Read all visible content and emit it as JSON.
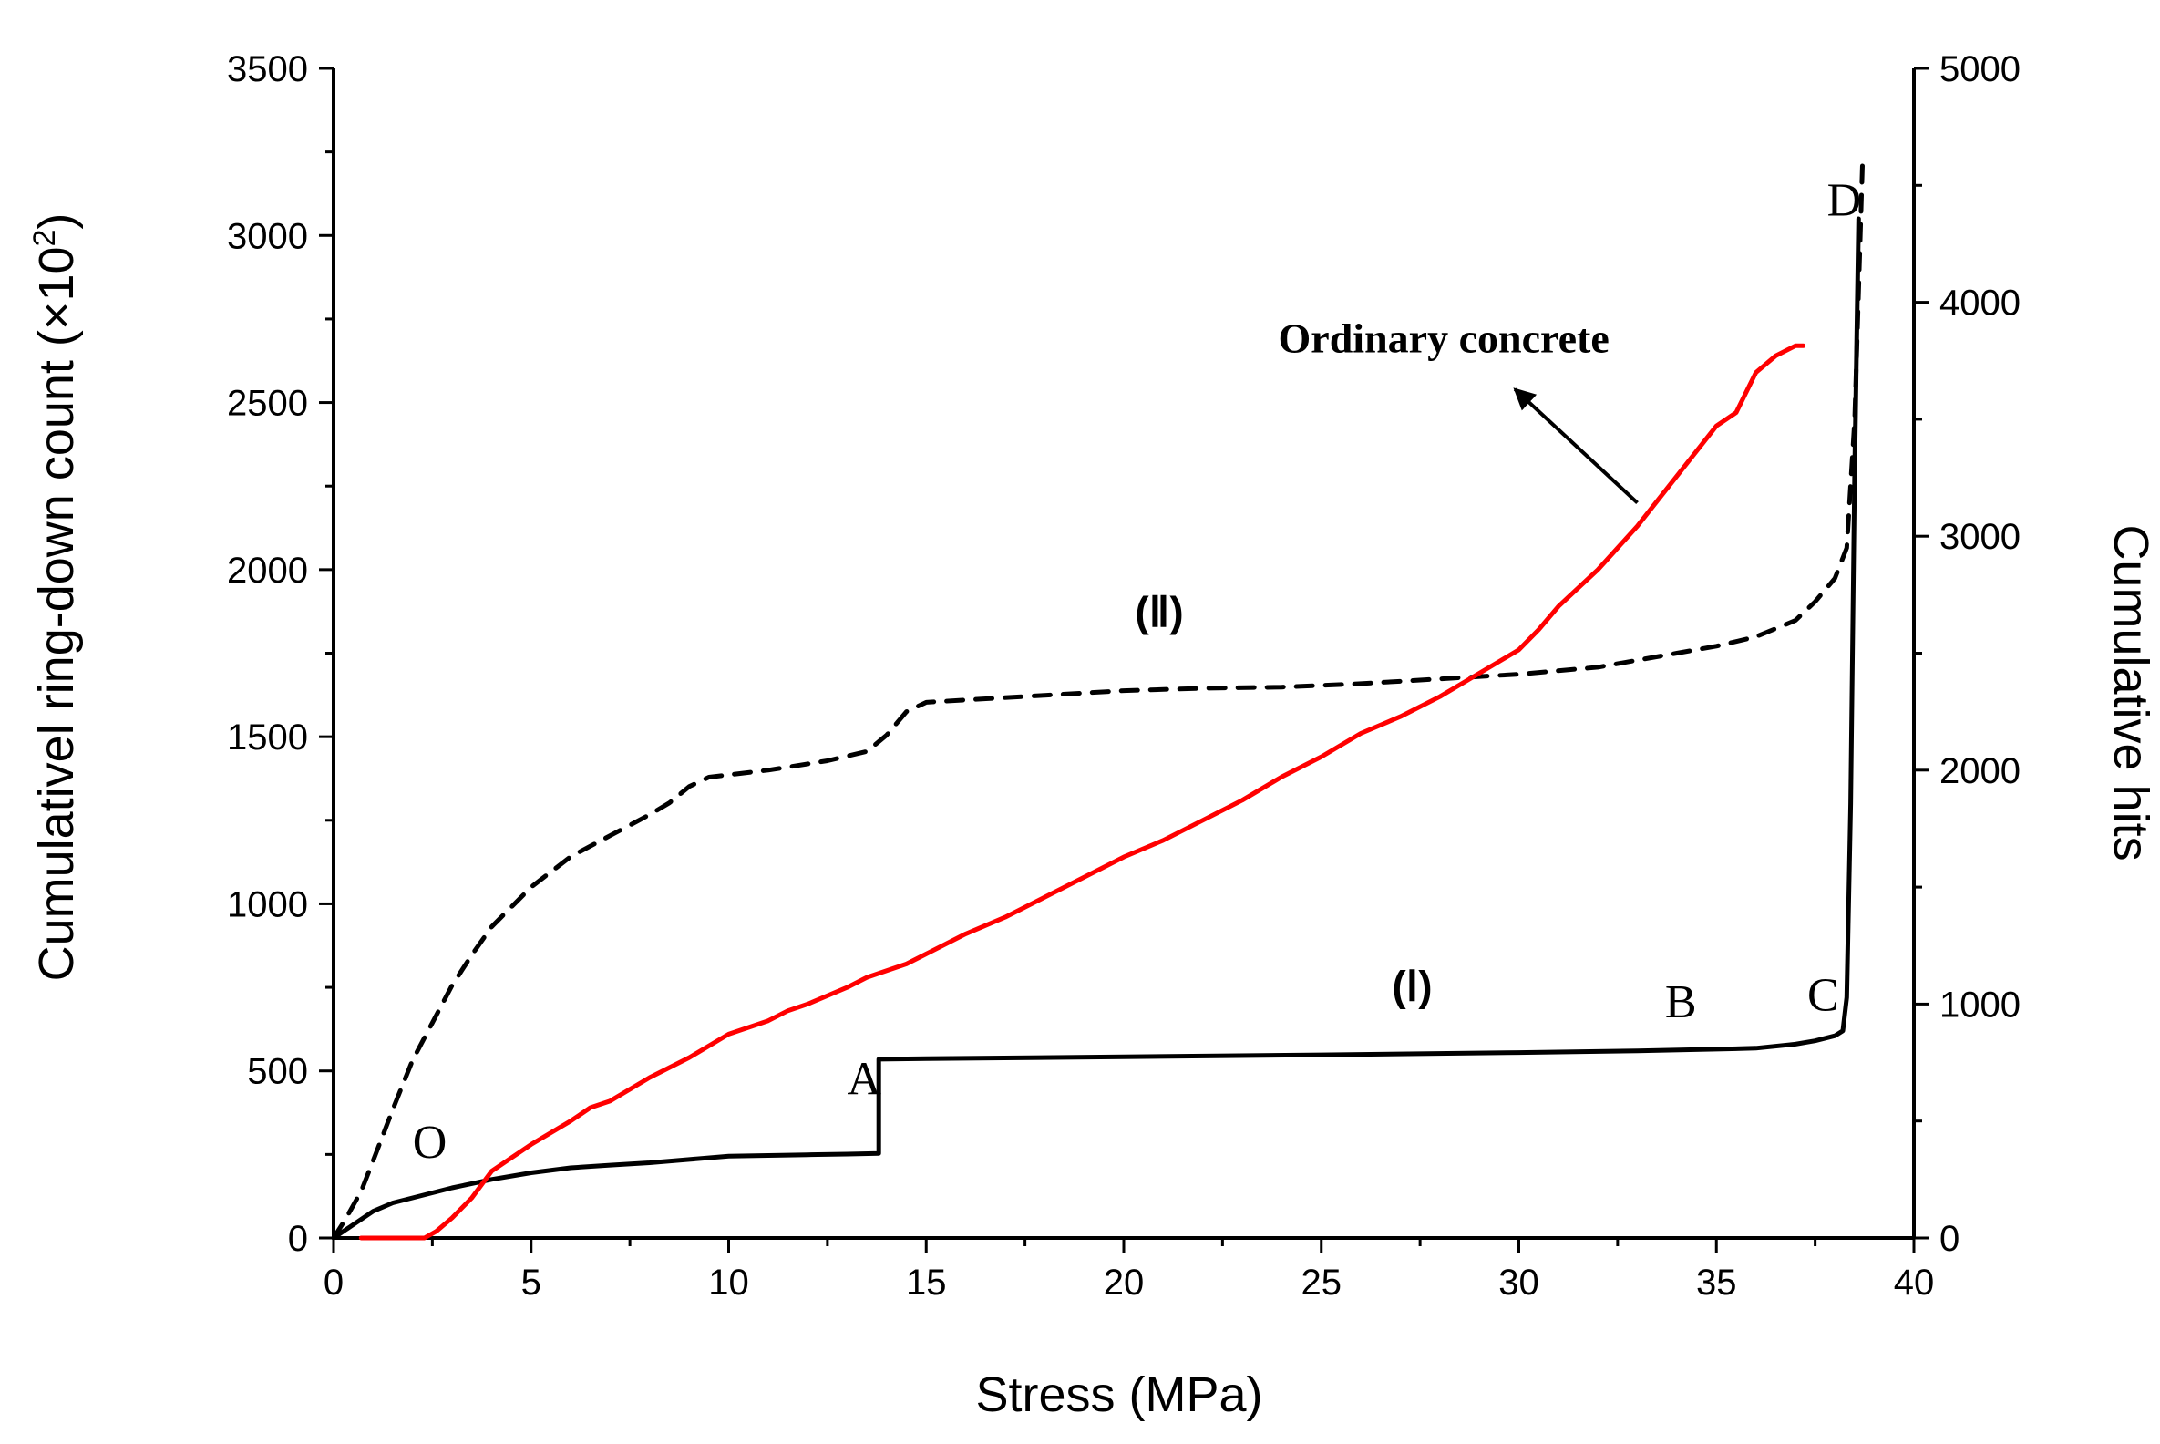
{
  "chart_data": {
    "type": "line",
    "title": "",
    "xlabel": "Stress (MPa)",
    "ylabel_left": "Cumulativel ring-down count (×10",
    "ylabel_left_exponent": "2",
    "ylabel_left_close": ")",
    "ylabel_right": "Cumulative hits",
    "xlim": [
      0,
      40
    ],
    "ylim_left": [
      0,
      3500
    ],
    "ylim_right": [
      0,
      5000
    ],
    "x_ticks": [
      "0",
      "5",
      "10",
      "15",
      "20",
      "25",
      "30",
      "35",
      "40"
    ],
    "y_left_ticks": [
      "0",
      "500",
      "1000",
      "1500",
      "2000",
      "2500",
      "3000",
      "3500"
    ],
    "y_right_ticks": [
      "0",
      "1000",
      "2000",
      "3000",
      "4000",
      "5000"
    ],
    "colors": {
      "curve_I": "#000000",
      "curve_II": "#000000",
      "ordinary": "#ff0000",
      "axes": "#000000"
    },
    "series": [
      {
        "name": "(I) cumulative ring-down count",
        "axis": "left",
        "style": "solid",
        "points": [
          [
            0,
            0
          ],
          [
            0.5,
            40
          ],
          [
            1,
            80
          ],
          [
            1.5,
            105
          ],
          [
            2,
            120
          ],
          [
            3,
            150
          ],
          [
            4,
            175
          ],
          [
            5,
            195
          ],
          [
            6,
            210
          ],
          [
            7,
            218
          ],
          [
            8,
            225
          ],
          [
            9,
            235
          ],
          [
            10,
            245
          ],
          [
            11,
            247
          ],
          [
            12,
            249
          ],
          [
            13,
            251
          ],
          [
            13.8,
            253
          ],
          [
            13.8,
            535
          ],
          [
            15,
            537
          ],
          [
            20,
            542
          ],
          [
            25,
            548
          ],
          [
            30,
            555
          ],
          [
            33,
            560
          ],
          [
            35,
            565
          ],
          [
            36,
            568
          ],
          [
            37,
            580
          ],
          [
            37.5,
            590
          ],
          [
            38,
            605
          ],
          [
            38.2,
            620
          ],
          [
            38.3,
            720
          ],
          [
            38.4,
            1300
          ],
          [
            38.5,
            2300
          ],
          [
            38.6,
            3050
          ]
        ]
      },
      {
        "name": "(II) cumulative hits",
        "axis": "right",
        "style": "dashed",
        "points": [
          [
            0,
            0
          ],
          [
            0.3,
            80
          ],
          [
            0.7,
            200
          ],
          [
            1,
            330
          ],
          [
            1.5,
            550
          ],
          [
            2,
            760
          ],
          [
            2.5,
            920
          ],
          [
            3,
            1080
          ],
          [
            3.5,
            1210
          ],
          [
            4,
            1330
          ],
          [
            5,
            1500
          ],
          [
            6,
            1630
          ],
          [
            7,
            1720
          ],
          [
            8,
            1810
          ],
          [
            8.5,
            1860
          ],
          [
            9,
            1930
          ],
          [
            9.5,
            1970
          ],
          [
            11,
            2000
          ],
          [
            12.5,
            2040
          ],
          [
            13.5,
            2080
          ],
          [
            14,
            2150
          ],
          [
            14.5,
            2250
          ],
          [
            15,
            2290
          ],
          [
            16,
            2300
          ],
          [
            18,
            2320
          ],
          [
            20,
            2340
          ],
          [
            22,
            2350
          ],
          [
            24,
            2355
          ],
          [
            26,
            2370
          ],
          [
            28,
            2390
          ],
          [
            30,
            2410
          ],
          [
            32,
            2440
          ],
          [
            33,
            2470
          ],
          [
            34,
            2500
          ],
          [
            35,
            2530
          ],
          [
            36,
            2570
          ],
          [
            37,
            2640
          ],
          [
            37.5,
            2720
          ],
          [
            38,
            2820
          ],
          [
            38.3,
            2950
          ],
          [
            38.5,
            3500
          ],
          [
            38.7,
            4600
          ]
        ]
      },
      {
        "name": "Ordinary concrete",
        "axis": "left",
        "style": "solid-red",
        "points": [
          [
            0.7,
            0
          ],
          [
            2.3,
            0
          ],
          [
            2.6,
            20
          ],
          [
            3,
            60
          ],
          [
            3.5,
            120
          ],
          [
            4,
            200
          ],
          [
            5,
            280
          ],
          [
            6,
            350
          ],
          [
            6.5,
            390
          ],
          [
            7,
            410
          ],
          [
            8,
            480
          ],
          [
            9,
            540
          ],
          [
            10,
            610
          ],
          [
            11,
            650
          ],
          [
            11.5,
            680
          ],
          [
            12,
            700
          ],
          [
            13,
            750
          ],
          [
            13.5,
            780
          ],
          [
            14,
            800
          ],
          [
            14.5,
            820
          ],
          [
            15,
            850
          ],
          [
            16,
            910
          ],
          [
            17,
            960
          ],
          [
            18,
            1020
          ],
          [
            19,
            1080
          ],
          [
            20,
            1140
          ],
          [
            21,
            1190
          ],
          [
            22,
            1250
          ],
          [
            23,
            1310
          ],
          [
            24,
            1380
          ],
          [
            25,
            1440
          ],
          [
            26,
            1510
          ],
          [
            27,
            1560
          ],
          [
            28,
            1620
          ],
          [
            29,
            1690
          ],
          [
            30,
            1760
          ],
          [
            30.5,
            1820
          ],
          [
            31,
            1890
          ],
          [
            32,
            2000
          ],
          [
            33,
            2130
          ],
          [
            34,
            2280
          ],
          [
            35,
            2430
          ],
          [
            35.5,
            2470
          ],
          [
            36,
            2590
          ],
          [
            36.5,
            2640
          ],
          [
            37,
            2670
          ],
          [
            37.2,
            2670
          ]
        ]
      }
    ],
    "annotations": [
      {
        "text": "O",
        "x": 2.0,
        "y": 240
      },
      {
        "text": "A",
        "x": 13.0,
        "y": 430
      },
      {
        "text": "B",
        "x": 33.7,
        "y": 660
      },
      {
        "text": "C",
        "x": 37.3,
        "y": 680
      },
      {
        "text": "D",
        "x": 37.8,
        "y": 3060
      }
    ],
    "region_labels": [
      {
        "text": "(Ⅰ)",
        "x": 27.3,
        "y": 710
      },
      {
        "text": "(Ⅱ)",
        "x": 20.9,
        "y": 1830
      }
    ],
    "callout": {
      "text": "Ordinary concrete",
      "x": 28.1,
      "y": 2650,
      "arrow_from": [
        33.0,
        2200
      ],
      "arrow_to": [
        29.9,
        2540
      ]
    }
  }
}
